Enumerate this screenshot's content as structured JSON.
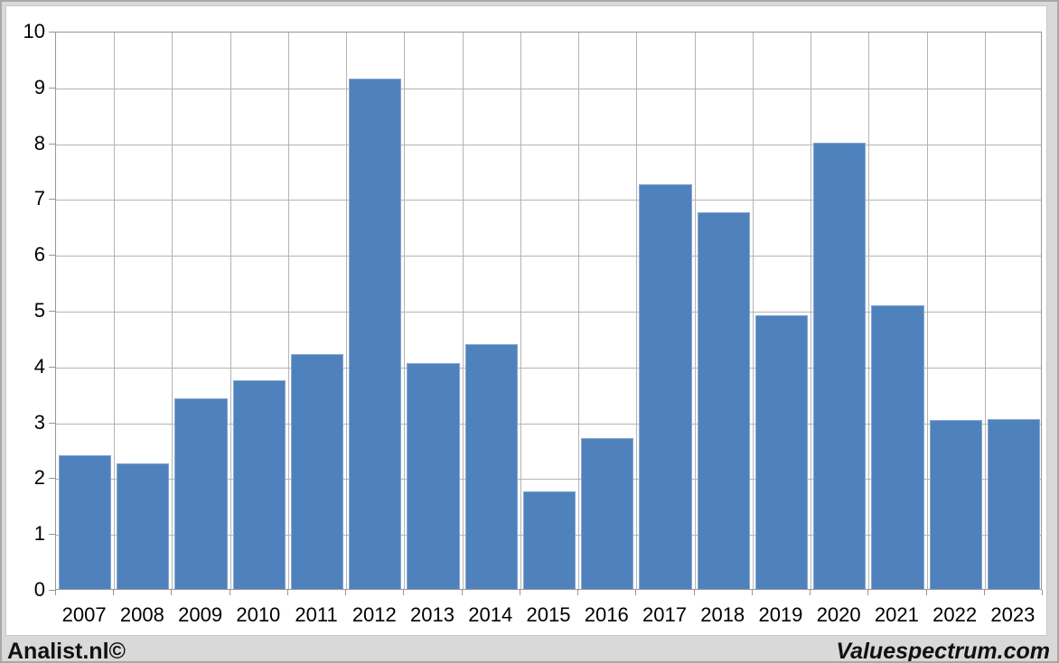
{
  "chart_data": {
    "type": "bar",
    "categories": [
      "2007",
      "2008",
      "2009",
      "2010",
      "2011",
      "2012",
      "2013",
      "2014",
      "2015",
      "2016",
      "2017",
      "2018",
      "2019",
      "2020",
      "2021",
      "2022",
      "2023"
    ],
    "values": [
      2.4,
      2.25,
      3.42,
      3.74,
      4.2,
      9.15,
      4.05,
      4.38,
      1.74,
      2.7,
      7.25,
      6.75,
      4.9,
      8.0,
      5.08,
      3.02,
      3.05
    ],
    "title": "",
    "xlabel": "",
    "ylabel": "",
    "ylim": [
      0,
      10
    ],
    "y_ticks": [
      0,
      1,
      2,
      3,
      4,
      5,
      6,
      7,
      8,
      9,
      10
    ],
    "grid": true,
    "legend": "none",
    "bar_color": "#4f81bd",
    "bar_border_color": "#84a7d1",
    "gridline_color": "#b4b4b4",
    "axis_color": "#969696",
    "label_color": "#000000"
  },
  "footer": {
    "left_text": "Analist.nl©",
    "right_text": "Valuespectrum.com"
  }
}
